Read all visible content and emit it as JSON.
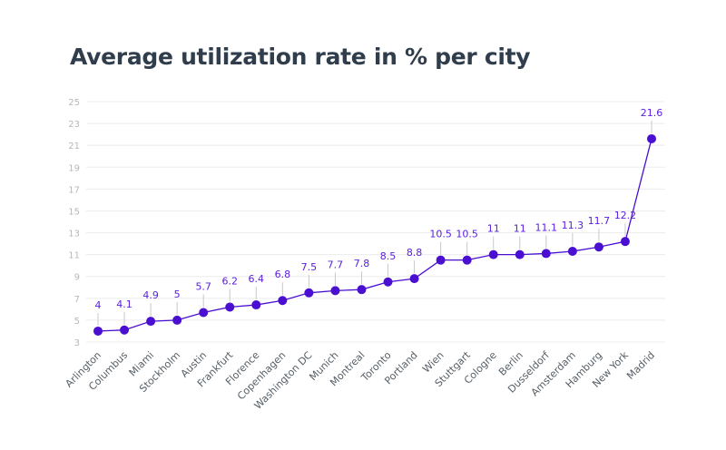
{
  "chart_data": {
    "type": "line",
    "title": "Average utilization rate in % per city",
    "xlabel": "",
    "ylabel": "",
    "categories": [
      "Arlington",
      "Columbus",
      "Miami",
      "Stockholm",
      "Austin",
      "Frankfurt",
      "Florence",
      "Copenhagen",
      "Washington DC",
      "Munich",
      "Montreal",
      "Toronto",
      "Portland",
      "Wien",
      "Stuttgart",
      "Cologne",
      "Berlin",
      "Dusseldorf",
      "Amsterdam",
      "Hamburg",
      "New York",
      "Madrid"
    ],
    "values": [
      4,
      4.1,
      4.9,
      5,
      5.7,
      6.2,
      6.4,
      6.8,
      7.5,
      7.7,
      7.8,
      8.5,
      8.8,
      10.5,
      10.5,
      11,
      11,
      11.1,
      11.3,
      11.7,
      12.2,
      21.6
    ],
    "data_labels": [
      "4",
      "4.1",
      "4.9",
      "5",
      "5.7",
      "6.2",
      "6.4",
      "6.8",
      "7.5",
      "7.7",
      "7.8",
      "8.5",
      "8.8",
      "10.5",
      "10.5",
      "11",
      "11",
      "11.1",
      "11.3",
      "11.7",
      "12.2",
      "21.6"
    ],
    "ylim": [
      3,
      25
    ],
    "yticks": [
      "3",
      "5",
      "7",
      "9",
      "11",
      "13",
      "15",
      "17",
      "19",
      "21",
      "23",
      "25"
    ],
    "grid": true,
    "legend": "none",
    "colors": {
      "series": "#4a0fd1",
      "label": "#5b1ee0",
      "grid": "#ececec",
      "tick": "#b8b8b8",
      "xlabel": "#555e66",
      "leader": "#c8c8c8"
    }
  }
}
